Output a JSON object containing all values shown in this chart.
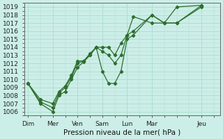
{
  "title": "Pression niveau de la mer( hPa )",
  "bg_color": "#cceee8",
  "grid_color": "#aaddcc",
  "line_color": "#2d6e2d",
  "ylim": [
    1005.5,
    1019.5
  ],
  "yticks": [
    1006,
    1007,
    1008,
    1009,
    1010,
    1011,
    1012,
    1013,
    1014,
    1015,
    1016,
    1017,
    1018,
    1019
  ],
  "xtick_labels": [
    "Dim",
    "Mer",
    "Ven",
    "Sam",
    "Lun",
    "Mar",
    "Jeu"
  ],
  "xtick_positions": [
    0,
    2,
    4,
    6,
    8,
    10,
    14
  ],
  "xlim": [
    -0.3,
    15.5
  ],
  "x_positions": [
    0,
    1,
    2,
    2.5,
    3,
    3.5,
    4,
    4.5,
    5,
    5.5,
    6,
    6.5,
    7,
    7.5,
    8,
    8.5,
    10,
    11,
    12,
    14
  ],
  "series": [
    [
      1009.5,
      1007.0,
      1006.0,
      1008.0,
      1008.5,
      1010.0,
      1011.5,
      1012.2,
      1013.0,
      1014.0,
      1011.0,
      1009.5,
      1009.5,
      1011.0,
      1015.0,
      1015.5,
      1018.0,
      1017.0,
      1017.0,
      1019.0
    ],
    [
      1009.5,
      1007.2,
      1006.5,
      1008.3,
      1009.0,
      1010.3,
      1012.0,
      1012.3,
      1013.2,
      1014.0,
      1013.5,
      1013.0,
      1012.0,
      1013.0,
      1015.5,
      1017.8,
      1017.0,
      1017.0,
      1019.0,
      1019.2
    ],
    [
      1009.5,
      1007.5,
      1007.0,
      1008.5,
      1009.2,
      1010.5,
      1012.3,
      1012.3,
      1013.0,
      1014.0,
      1014.0,
      1014.0,
      1013.0,
      1014.5,
      1015.5,
      1016.0,
      1018.0,
      1017.0,
      1017.0,
      1019.2
    ]
  ]
}
